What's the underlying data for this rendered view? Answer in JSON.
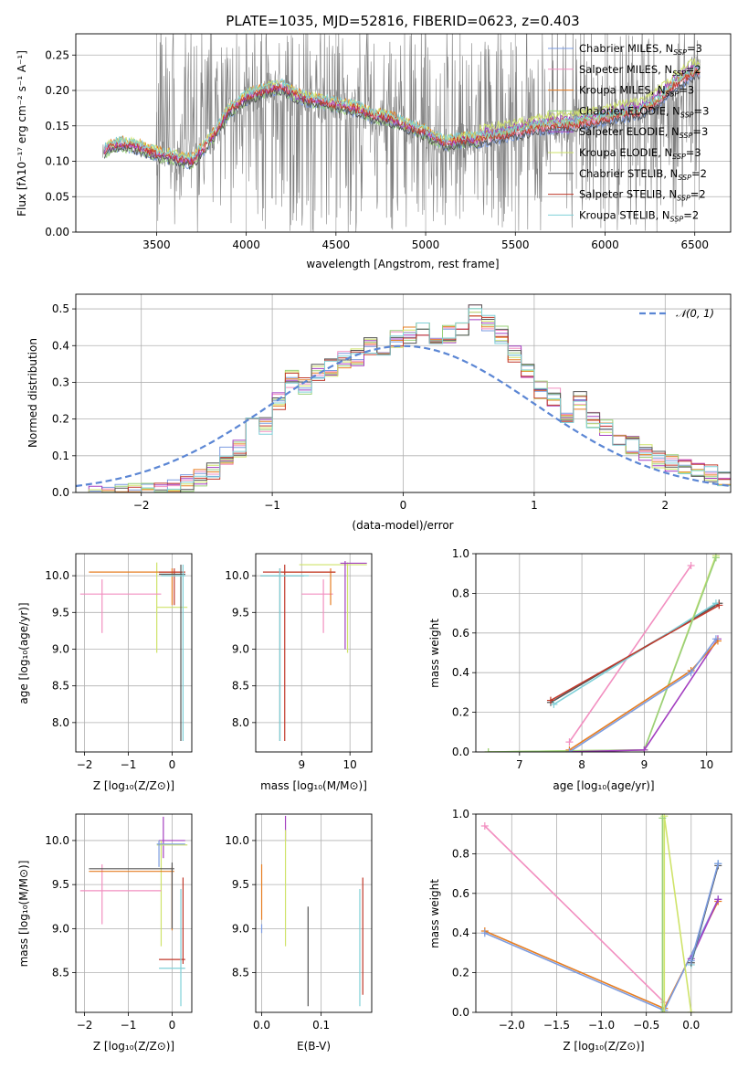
{
  "colors": {
    "c_miles": "#7b9be0",
    "s_miles": "#f28fc0",
    "k_miles": "#e67e22",
    "c_elodie": "#9ad07a",
    "s_elodie": "#a33fc0",
    "k_elodie": "#cfe36a",
    "c_stelib": "#555555",
    "s_stelib": "#c0392b",
    "k_stelib": "#7fd0d8",
    "data": "#808080",
    "normal": "#5b86d4"
  },
  "series_order": [
    "c_miles",
    "s_miles",
    "k_miles",
    "c_elodie",
    "s_elodie",
    "k_elodie",
    "c_stelib",
    "s_stelib",
    "k_stelib"
  ],
  "chart_data": [
    {
      "id": "spectrum",
      "type": "line",
      "title": "PLATE=1035, MJD=52816, FIBERID=0623, z=0.403",
      "xlabel": "wavelength [Angstrom, rest frame]",
      "ylabel": "Flux [fλ10⁻¹⁷ erg cm⁻² s⁻¹ A⁻¹]",
      "xlim": [
        3050,
        6700
      ],
      "ylim": [
        0,
        0.28
      ],
      "xticks": [
        3500,
        4000,
        4500,
        5000,
        5500,
        6000,
        6500
      ],
      "yticks": [
        "0.00",
        "0.05",
        "0.10",
        "0.15",
        "0.20",
        "0.25"
      ],
      "legend_position": "top-right",
      "legend": [
        {
          "key": "c_miles",
          "label": "Chabrier MILES, N",
          "sub": "SSP",
          "tail": "=3"
        },
        {
          "key": "s_miles",
          "label": "Salpeter MILES, N",
          "sub": "SSP",
          "tail": "=2"
        },
        {
          "key": "k_miles",
          "label": "Kroupa MILES, N",
          "sub": "SSP",
          "tail": "=3"
        },
        {
          "key": "c_elodie",
          "label": "Chabrier ELODIE, N",
          "sub": "SSP",
          "tail": "=3"
        },
        {
          "key": "s_elodie",
          "label": "Salpeter ELODIE, N",
          "sub": "SSP",
          "tail": "=3"
        },
        {
          "key": "k_elodie",
          "label": "Kroupa ELODIE, N",
          "sub": "SSP",
          "tail": "=3"
        },
        {
          "key": "c_stelib",
          "label": "Chabrier STELIB, N",
          "sub": "SSP",
          "tail": "=2"
        },
        {
          "key": "s_stelib",
          "label": "Salpeter STELIB, N",
          "sub": "SSP",
          "tail": "=2"
        },
        {
          "key": "k_stelib",
          "label": "Kroupa STELIB, N",
          "sub": "SSP",
          "tail": "=2"
        }
      ],
      "model_continuum": {
        "x": [
          3200,
          3300,
          3400,
          3500,
          3600,
          3700,
          3800,
          3900,
          4000,
          4100,
          4200,
          4300,
          4400,
          4500,
          4600,
          4700,
          4800,
          4900,
          5000,
          5100,
          5200,
          5300,
          5400,
          5500,
          5600,
          5700,
          5800,
          5900,
          6000,
          6100,
          6200,
          6300,
          6400,
          6500
        ],
        "y": [
          0.115,
          0.125,
          0.12,
          0.11,
          0.105,
          0.1,
          0.13,
          0.17,
          0.19,
          0.2,
          0.205,
          0.19,
          0.185,
          0.18,
          0.175,
          0.165,
          0.16,
          0.15,
          0.14,
          0.125,
          0.13,
          0.13,
          0.135,
          0.14,
          0.145,
          0.15,
          0.15,
          0.155,
          0.16,
          0.165,
          0.17,
          0.185,
          0.21,
          0.225
        ]
      }
    },
    {
      "id": "residuals",
      "type": "histogram",
      "xlabel": "(data-model)/error",
      "ylabel": "Normed distribution",
      "xlim": [
        -2.5,
        2.5
      ],
      "ylim": [
        0,
        0.54
      ],
      "xticks": [
        "−2",
        "−1",
        "0",
        "1",
        "2"
      ],
      "yticks": [
        "0.0",
        "0.1",
        "0.2",
        "0.3",
        "0.4",
        "0.5"
      ],
      "legend": "𝒩(0, 1)",
      "bin_width": 0.1,
      "hist_x": [
        -2.5,
        -2.4,
        -2.3,
        -2.2,
        -2.1,
        -2.0,
        -1.9,
        -1.8,
        -1.7,
        -1.6,
        -1.5,
        -1.4,
        -1.3,
        -1.2,
        -1.1,
        -1.0,
        -0.9,
        -0.8,
        -0.7,
        -0.6,
        -0.5,
        -0.4,
        -0.3,
        -0.2,
        -0.1,
        0.0,
        0.1,
        0.2,
        0.3,
        0.4,
        0.5,
        0.6,
        0.7,
        0.8,
        0.9,
        1.0,
        1.1,
        1.2,
        1.3,
        1.4,
        1.5,
        1.6,
        1.7,
        1.8,
        1.9,
        2.0,
        2.1,
        2.2,
        2.3,
        2.4
      ],
      "hist_y": [
        0,
        0,
        0,
        0,
        0,
        0,
        0.005,
        0.012,
        0.025,
        0.04,
        0.06,
        0.1,
        0.12,
        0.19,
        0.18,
        0.25,
        0.31,
        0.29,
        0.33,
        0.34,
        0.36,
        0.37,
        0.4,
        0.38,
        0.42,
        0.43,
        0.44,
        0.41,
        0.43,
        0.45,
        0.49,
        0.46,
        0.43,
        0.38,
        0.33,
        0.28,
        0.26,
        0.2,
        0.25,
        0.2,
        0.18,
        0.15,
        0.13,
        0.11,
        0.09,
        0.08,
        0.07,
        0.06,
        0.05,
        0.04
      ]
    },
    {
      "id": "age_vs_Z",
      "type": "errorbar",
      "xlabel": "Z [log₁₀(Z/Z⊙)]",
      "ylabel": "age  [log₁₀(age/yr)]",
      "xlim": [
        -2.2,
        0.45
      ],
      "ylim": [
        7.6,
        10.3
      ],
      "xticks": [
        -2,
        -1,
        0
      ],
      "yticks": [
        8.0,
        8.5,
        9.0,
        9.5,
        10.0
      ],
      "points": [
        {
          "s": "k_elodie",
          "x": -0.35,
          "y": 9.57,
          "xlo": -0.35,
          "xhi": 0.35,
          "ylo": 8.95,
          "yhi": 10.18
        },
        {
          "s": "s_miles",
          "x": -1.6,
          "y": 9.75,
          "xlo": -2.1,
          "xhi": -0.25,
          "ylo": 9.22,
          "yhi": 9.95
        },
        {
          "s": "k_miles",
          "x": 0.0,
          "y": 10.05,
          "xlo": -1.9,
          "xhi": 0.25,
          "ylo": 9.6,
          "yhi": 10.1
        },
        {
          "s": "s_stelib",
          "x": 0.05,
          "y": 10.05,
          "xlo": -0.3,
          "xhi": 0.3,
          "ylo": 9.6,
          "yhi": 10.1
        },
        {
          "s": "c_stelib",
          "x": 0.2,
          "y": 10.02,
          "xlo": -0.3,
          "xhi": 0.3,
          "ylo": 7.75,
          "yhi": 10.15
        },
        {
          "s": "k_stelib",
          "x": 0.25,
          "y": 10.0,
          "xlo": -0.25,
          "xhi": 0.3,
          "ylo": 7.75,
          "yhi": 10.15
        }
      ]
    },
    {
      "id": "age_vs_mass",
      "type": "errorbar",
      "xlabel": "mass [log₁₀(M/M⊙)]",
      "ylabel": "",
      "xlim": [
        8.05,
        10.45
      ],
      "ylim": [
        7.6,
        10.3
      ],
      "xticks": [
        9,
        10
      ],
      "yticks": [
        8.0,
        8.5,
        9.0,
        9.5,
        10.0
      ],
      "points": [
        {
          "s": "s_miles",
          "x": 9.45,
          "y": 9.75,
          "xlo": 9.0,
          "xhi": 9.65,
          "ylo": 9.22,
          "yhi": 9.95
        },
        {
          "s": "k_elodie",
          "x": 9.95,
          "y": 10.15,
          "xlo": 8.95,
          "xhi": 10.35,
          "ylo": 8.95,
          "yhi": 10.18
        },
        {
          "s": "s_elodie",
          "x": 9.9,
          "y": 10.17,
          "xlo": 9.8,
          "xhi": 10.35,
          "ylo": 9.0,
          "yhi": 10.2
        },
        {
          "s": "k_miles",
          "x": 9.6,
          "y": 10.05,
          "xlo": 8.6,
          "xhi": 9.7,
          "ylo": 9.6,
          "yhi": 10.1
        },
        {
          "s": "s_stelib",
          "x": 8.65,
          "y": 10.05,
          "xlo": 8.2,
          "xhi": 9.7,
          "ylo": 7.75,
          "yhi": 10.15
        },
        {
          "s": "c_stelib",
          "x": 8.55,
          "y": 10.0,
          "xlo": 8.15,
          "xhi": 9.05,
          "ylo": 7.75,
          "yhi": 10.1
        },
        {
          "s": "k_stelib",
          "x": 8.55,
          "y": 10.0,
          "xlo": 8.15,
          "xhi": 9.15,
          "ylo": 7.75,
          "yhi": 10.1
        }
      ]
    },
    {
      "id": "weight_vs_age",
      "type": "line",
      "xlabel": "age  [log₁₀(age/yr)]",
      "ylabel": "mass weight",
      "xlim": [
        6.3,
        10.4
      ],
      "ylim": [
        0,
        1.0
      ],
      "xticks": [
        7,
        8,
        9,
        10
      ],
      "yticks": [
        "0.0",
        "0.2",
        "0.4",
        "0.6",
        "0.8",
        "1.0"
      ],
      "series": [
        {
          "s": "s_miles",
          "x": [
            7.8,
            9.75
          ],
          "y": [
            0.05,
            0.94
          ]
        },
        {
          "s": "c_stelib",
          "x": [
            7.5,
            10.2
          ],
          "y": [
            0.25,
            0.75
          ]
        },
        {
          "s": "k_stelib",
          "x": [
            7.55,
            10.15
          ],
          "y": [
            0.24,
            0.75
          ]
        },
        {
          "s": "s_stelib",
          "x": [
            7.5,
            10.2
          ],
          "y": [
            0.26,
            0.74
          ]
        },
        {
          "s": "k_elodie",
          "x": [
            6.5,
            9.0,
            10.15
          ],
          "y": [
            0.0,
            0.01,
            0.99
          ]
        },
        {
          "s": "c_elodie",
          "x": [
            6.5,
            9.0,
            10.15
          ],
          "y": [
            0.0,
            0.01,
            0.98
          ]
        },
        {
          "s": "s_elodie",
          "x": [
            7.8,
            9.0,
            10.18
          ],
          "y": [
            0.0,
            0.01,
            0.57
          ]
        },
        {
          "s": "k_miles",
          "x": [
            7.8,
            9.75,
            10.18
          ],
          "y": [
            0.01,
            0.41,
            0.56
          ]
        },
        {
          "s": "c_miles",
          "x": [
            7.8,
            9.75,
            10.15
          ],
          "y": [
            0.0,
            0.4,
            0.57
          ]
        }
      ]
    },
    {
      "id": "mass_vs_Z",
      "type": "errorbar",
      "xlabel": "Z [log₁₀(Z/Z⊙)]",
      "ylabel": "mass [log₁₀(M/M⊙)]",
      "xlim": [
        -2.2,
        0.45
      ],
      "ylim": [
        8.05,
        10.3
      ],
      "xticks": [
        -2,
        -1,
        0
      ],
      "yticks": [
        8.5,
        9.0,
        9.5,
        10.0
      ],
      "points": [
        {
          "s": "s_elodie",
          "x": -0.2,
          "y": 10.0,
          "xlo": -0.3,
          "xhi": 0.3,
          "ylo": 9.8,
          "yhi": 10.27
        },
        {
          "s": "k_elodie",
          "x": -0.25,
          "y": 9.95,
          "xlo": -0.35,
          "xhi": 0.35,
          "ylo": 8.8,
          "yhi": 10.0
        },
        {
          "s": "c_miles",
          "x": -0.3,
          "y": 9.96,
          "xlo": -0.35,
          "xhi": 0.3,
          "ylo": 9.7,
          "yhi": 10.0
        },
        {
          "s": "s_miles",
          "x": -1.6,
          "y": 9.43,
          "xlo": -2.1,
          "xhi": -0.25,
          "ylo": 9.05,
          "yhi": 9.73
        },
        {
          "s": "k_miles",
          "x": 0.0,
          "y": 9.65,
          "xlo": -1.9,
          "xhi": 0.05,
          "ylo": 8.98,
          "yhi": 9.7
        },
        {
          "s": "c_stelib",
          "x": 0.0,
          "y": 9.68,
          "xlo": -1.9,
          "xhi": 0.05,
          "ylo": 9.0,
          "yhi": 9.75
        },
        {
          "s": "s_stelib",
          "x": 0.25,
          "y": 8.65,
          "xlo": -0.3,
          "xhi": 0.3,
          "ylo": 8.6,
          "yhi": 9.58
        },
        {
          "s": "k_stelib",
          "x": 0.2,
          "y": 8.55,
          "xlo": -0.3,
          "xhi": 0.3,
          "ylo": 8.12,
          "yhi": 9.45
        }
      ]
    },
    {
      "id": "mass_vs_ebv",
      "type": "errorbar",
      "xlabel": "E(B-V)",
      "ylabel": "",
      "xlim": [
        -0.01,
        0.185
      ],
      "ylim": [
        8.05,
        10.3
      ],
      "xticks": [
        "0.0",
        "0.1"
      ],
      "yticks": [
        8.5,
        9.0,
        9.5,
        10.0
      ],
      "points": [
        {
          "s": "k_miles",
          "x": 0.0,
          "y": 9.4,
          "xlo": 0.0,
          "xhi": 0.0,
          "ylo": 9.1,
          "yhi": 9.73
        },
        {
          "s": "c_miles",
          "x": 0.0,
          "y": 9.0,
          "xlo": 0.0,
          "xhi": 0.0,
          "ylo": 8.95,
          "yhi": 9.05
        },
        {
          "s": "s_elodie",
          "x": 0.04,
          "y": 10.15,
          "xlo": 0.04,
          "xhi": 0.04,
          "ylo": 10.0,
          "yhi": 10.28
        },
        {
          "s": "k_elodie",
          "x": 0.04,
          "y": 9.5,
          "xlo": 0.04,
          "xhi": 0.04,
          "ylo": 8.8,
          "yhi": 10.12
        },
        {
          "s": "c_stelib",
          "x": 0.078,
          "y": 8.7,
          "xlo": 0.078,
          "xhi": 0.078,
          "ylo": 8.12,
          "yhi": 9.25
        },
        {
          "s": "s_stelib",
          "x": 0.17,
          "y": 8.9,
          "xlo": 0.17,
          "xhi": 0.17,
          "ylo": 8.25,
          "yhi": 9.58
        },
        {
          "s": "k_stelib",
          "x": 0.165,
          "y": 8.8,
          "xlo": 0.165,
          "xhi": 0.165,
          "ylo": 8.12,
          "yhi": 9.45
        }
      ]
    },
    {
      "id": "weight_vs_Z",
      "type": "line",
      "xlabel": "Z [log₁₀(Z/Z⊙)]",
      "ylabel": "mass weight",
      "xlim": [
        -2.4,
        0.45
      ],
      "ylim": [
        0,
        1.0
      ],
      "xticks": [
        "−2.0",
        "−1.5",
        "−1.0",
        "−0.5",
        "0.0"
      ],
      "xtick_values": [
        -2.0,
        -1.5,
        -1.0,
        -0.5,
        0.0
      ],
      "yticks": [
        "0.0",
        "0.2",
        "0.4",
        "0.6",
        "0.8",
        "1.0"
      ],
      "series": [
        {
          "s": "s_miles",
          "x": [
            -2.3,
            -0.3
          ],
          "y": [
            0.94,
            0.05
          ]
        },
        {
          "s": "k_miles",
          "x": [
            -2.3,
            -0.3,
            0.3
          ],
          "y": [
            0.41,
            0.02,
            0.56
          ]
        },
        {
          "s": "c_miles",
          "x": [
            -2.3,
            -0.3,
            0.3
          ],
          "y": [
            0.4,
            0.01,
            0.57
          ]
        },
        {
          "s": "k_elodie",
          "x": [
            -0.3,
            -0.3,
            0.0
          ],
          "y": [
            0.0,
            0.99,
            0.0
          ]
        },
        {
          "s": "c_elodie",
          "x": [
            -0.32,
            -0.32
          ],
          "y": [
            0.0,
            0.98
          ]
        },
        {
          "s": "s_elodie",
          "x": [
            0.0,
            0.3
          ],
          "y": [
            0.27,
            0.57
          ]
        },
        {
          "s": "k_stelib",
          "x": [
            0.0,
            0.3
          ],
          "y": [
            0.24,
            0.75
          ]
        },
        {
          "s": "c_stelib",
          "x": [
            0.0,
            0.3
          ],
          "y": [
            0.25,
            0.74
          ]
        },
        {
          "s": "c_miles",
          "x": [
            0.0,
            0.3
          ],
          "y": [
            0.26,
            0.75
          ]
        }
      ]
    }
  ]
}
